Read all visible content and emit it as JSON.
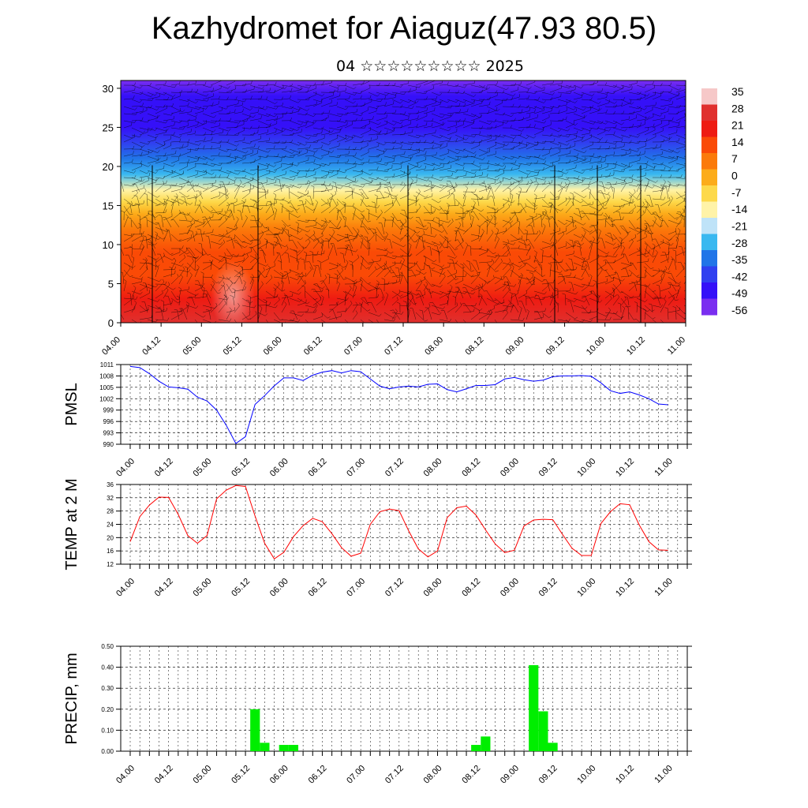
{
  "header": {
    "title": "Kazhydromet for Aiaguz(47.93 80.5)",
    "subtitle": "04 ☆☆☆☆☆☆☆☆☆ 2025"
  },
  "chart_data": [
    {
      "type": "heatmap",
      "name": "temperature-height cross-section with wind barbs",
      "x_ticks": [
        "04.00",
        "04.12",
        "05.00",
        "05.12",
        "06.00",
        "06.12",
        "07.00",
        "07.12",
        "08.00",
        "08.12",
        "09.00",
        "09.12",
        "10.00",
        "10.12",
        "11.00"
      ],
      "y_ticks": [
        0,
        5,
        10,
        15,
        20,
        25,
        30
      ],
      "ylim": [
        0,
        31
      ],
      "colorbar": {
        "labels": [
          "35",
          "28",
          "21",
          "14",
          "7",
          "0",
          "-7",
          "-14",
          "-21",
          "-28",
          "-35",
          "-42",
          "-49",
          "-56"
        ],
        "colors_top_to_bottom": [
          "#f6c8c8",
          "#e0302e",
          "#ee1b12",
          "#fa4a06",
          "#fb7a0a",
          "#fcac1a",
          "#fdd94a",
          "#fff3a8",
          "#bfe3f8",
          "#39b8f0",
          "#2175e8",
          "#3040f0",
          "#3510f8",
          "#7a2ef0"
        ]
      },
      "temperature_profile": {
        "heights": [
          0,
          3,
          6,
          9,
          12,
          14,
          15.5,
          17,
          19,
          21,
          23,
          25,
          27,
          29,
          31
        ],
        "values_c": [
          24,
          19,
          14,
          9,
          3,
          -3,
          -10,
          -17,
          -28,
          -40,
          -48,
          -53,
          -50,
          -52,
          -56
        ]
      }
    },
    {
      "type": "line",
      "ylabel": "PMSL",
      "y_ticks": [
        "1011",
        "1008",
        "1005",
        "1002",
        "999",
        "996",
        "993",
        "990"
      ],
      "ylim": [
        990,
        1011
      ],
      "x_ticks": [
        "04.00",
        "04.12",
        "05.00",
        "05.12",
        "06.00",
        "06.12",
        "07.00",
        "07.12",
        "08.00",
        "08.12",
        "09.00",
        "09.12",
        "10.00",
        "10.12",
        "11.00"
      ],
      "x": [
        0,
        3,
        6,
        9,
        12,
        15,
        18,
        21,
        24,
        27,
        30,
        33,
        36,
        39,
        42,
        45,
        48,
        51,
        54,
        57,
        60,
        63,
        66,
        69,
        72,
        75,
        78,
        81,
        84,
        87,
        90,
        93,
        96,
        99,
        102,
        105,
        108,
        111,
        114,
        117,
        120,
        123,
        126,
        129,
        132,
        135,
        138,
        141,
        144,
        147,
        150,
        153,
        156,
        159,
        162,
        165,
        168
      ],
      "series": [
        {
          "color": "#0000ff",
          "values": [
            1010.5,
            1010.2,
            1008.6,
            1006.6,
            1005.1,
            1004.9,
            1004.5,
            1002.4,
            1001.4,
            999.0,
            995.0,
            990.2,
            992.0,
            1000.5,
            1002.8,
            1005.4,
            1007.5,
            1007.5,
            1006.8,
            1008.2,
            1009.0,
            1009.4,
            1008.8,
            1009.4,
            1009.1,
            1007.2,
            1005.3,
            1004.6,
            1005.1,
            1005.3,
            1005.1,
            1005.8,
            1005.9,
            1004.4,
            1003.8,
            1004.6,
            1005.5,
            1005.5,
            1005.7,
            1007.2,
            1007.6,
            1007.0,
            1006.6,
            1006.9,
            1007.8,
            1008.0,
            1008.0,
            1008.1,
            1007.9,
            1006.2,
            1004.1,
            1003.4,
            1003.8,
            1003.0,
            1002.0,
            1000.6,
            1000.4
          ]
        }
      ]
    },
    {
      "type": "line",
      "ylabel": "TEMP at 2 M",
      "y_ticks": [
        "36",
        "32",
        "28",
        "24",
        "20",
        "16",
        "12"
      ],
      "ylim": [
        12,
        36
      ],
      "x_ticks": [
        "04.00",
        "04.12",
        "05.00",
        "05.12",
        "06.00",
        "06.12",
        "07.00",
        "07.12",
        "08.00",
        "08.12",
        "09.00",
        "09.12",
        "10.00",
        "10.12",
        "11.00"
      ],
      "x": [
        0,
        3,
        6,
        9,
        12,
        15,
        18,
        21,
        24,
        27,
        30,
        33,
        36,
        39,
        42,
        45,
        48,
        51,
        54,
        57,
        60,
        63,
        66,
        69,
        72,
        75,
        78,
        81,
        84,
        87,
        90,
        93,
        96,
        99,
        102,
        105,
        108,
        111,
        114,
        117,
        120,
        123,
        126,
        129,
        132,
        135,
        138,
        141,
        144,
        147,
        150,
        153,
        156,
        159,
        162,
        165,
        168
      ],
      "series": [
        {
          "color": "#ff0000",
          "values": [
            18.8,
            26.3,
            29.8,
            32.2,
            32.1,
            27.0,
            20.6,
            18.3,
            20.6,
            31.7,
            34.3,
            35.7,
            35.4,
            26.5,
            18.3,
            13.6,
            15.6,
            20.3,
            23.6,
            25.8,
            24.8,
            21.2,
            17.0,
            14.4,
            15.3,
            24.0,
            27.8,
            28.6,
            28.1,
            22.0,
            16.6,
            14.2,
            16.0,
            26.0,
            29.0,
            29.5,
            26.8,
            22.3,
            18.1,
            15.5,
            16.2,
            23.5,
            25.3,
            25.5,
            25.4,
            21.0,
            16.8,
            14.6,
            14.6,
            24.2,
            27.8,
            30.2,
            29.9,
            23.8,
            18.8,
            16.3,
            16.2
          ]
        }
      ]
    },
    {
      "type": "bar",
      "ylabel": "PRECIP, mm",
      "y_ticks": [
        "0.50",
        "0.40",
        "0.30",
        "0.20",
        "0.10",
        "0.00"
      ],
      "ylim": [
        0,
        0.5
      ],
      "x_ticks": [
        "04.00",
        "04.12",
        "05.00",
        "05.12",
        "06.00",
        "06.12",
        "07.00",
        "07.12",
        "08.00",
        "08.12",
        "09.00",
        "09.12",
        "10.00",
        "10.12",
        "11.00"
      ],
      "bars": [
        {
          "x_hours": 39,
          "value": 0.2
        },
        {
          "x_hours": 42,
          "value": 0.04
        },
        {
          "x_hours": 48,
          "value": 0.03
        },
        {
          "x_hours": 51,
          "value": 0.03
        },
        {
          "x_hours": 108,
          "value": 0.03
        },
        {
          "x_hours": 111,
          "value": 0.07
        },
        {
          "x_hours": 126,
          "value": 0.41
        },
        {
          "x_hours": 129,
          "value": 0.19
        },
        {
          "x_hours": 132,
          "value": 0.04
        }
      ],
      "bar_color": "#00ee00"
    }
  ]
}
